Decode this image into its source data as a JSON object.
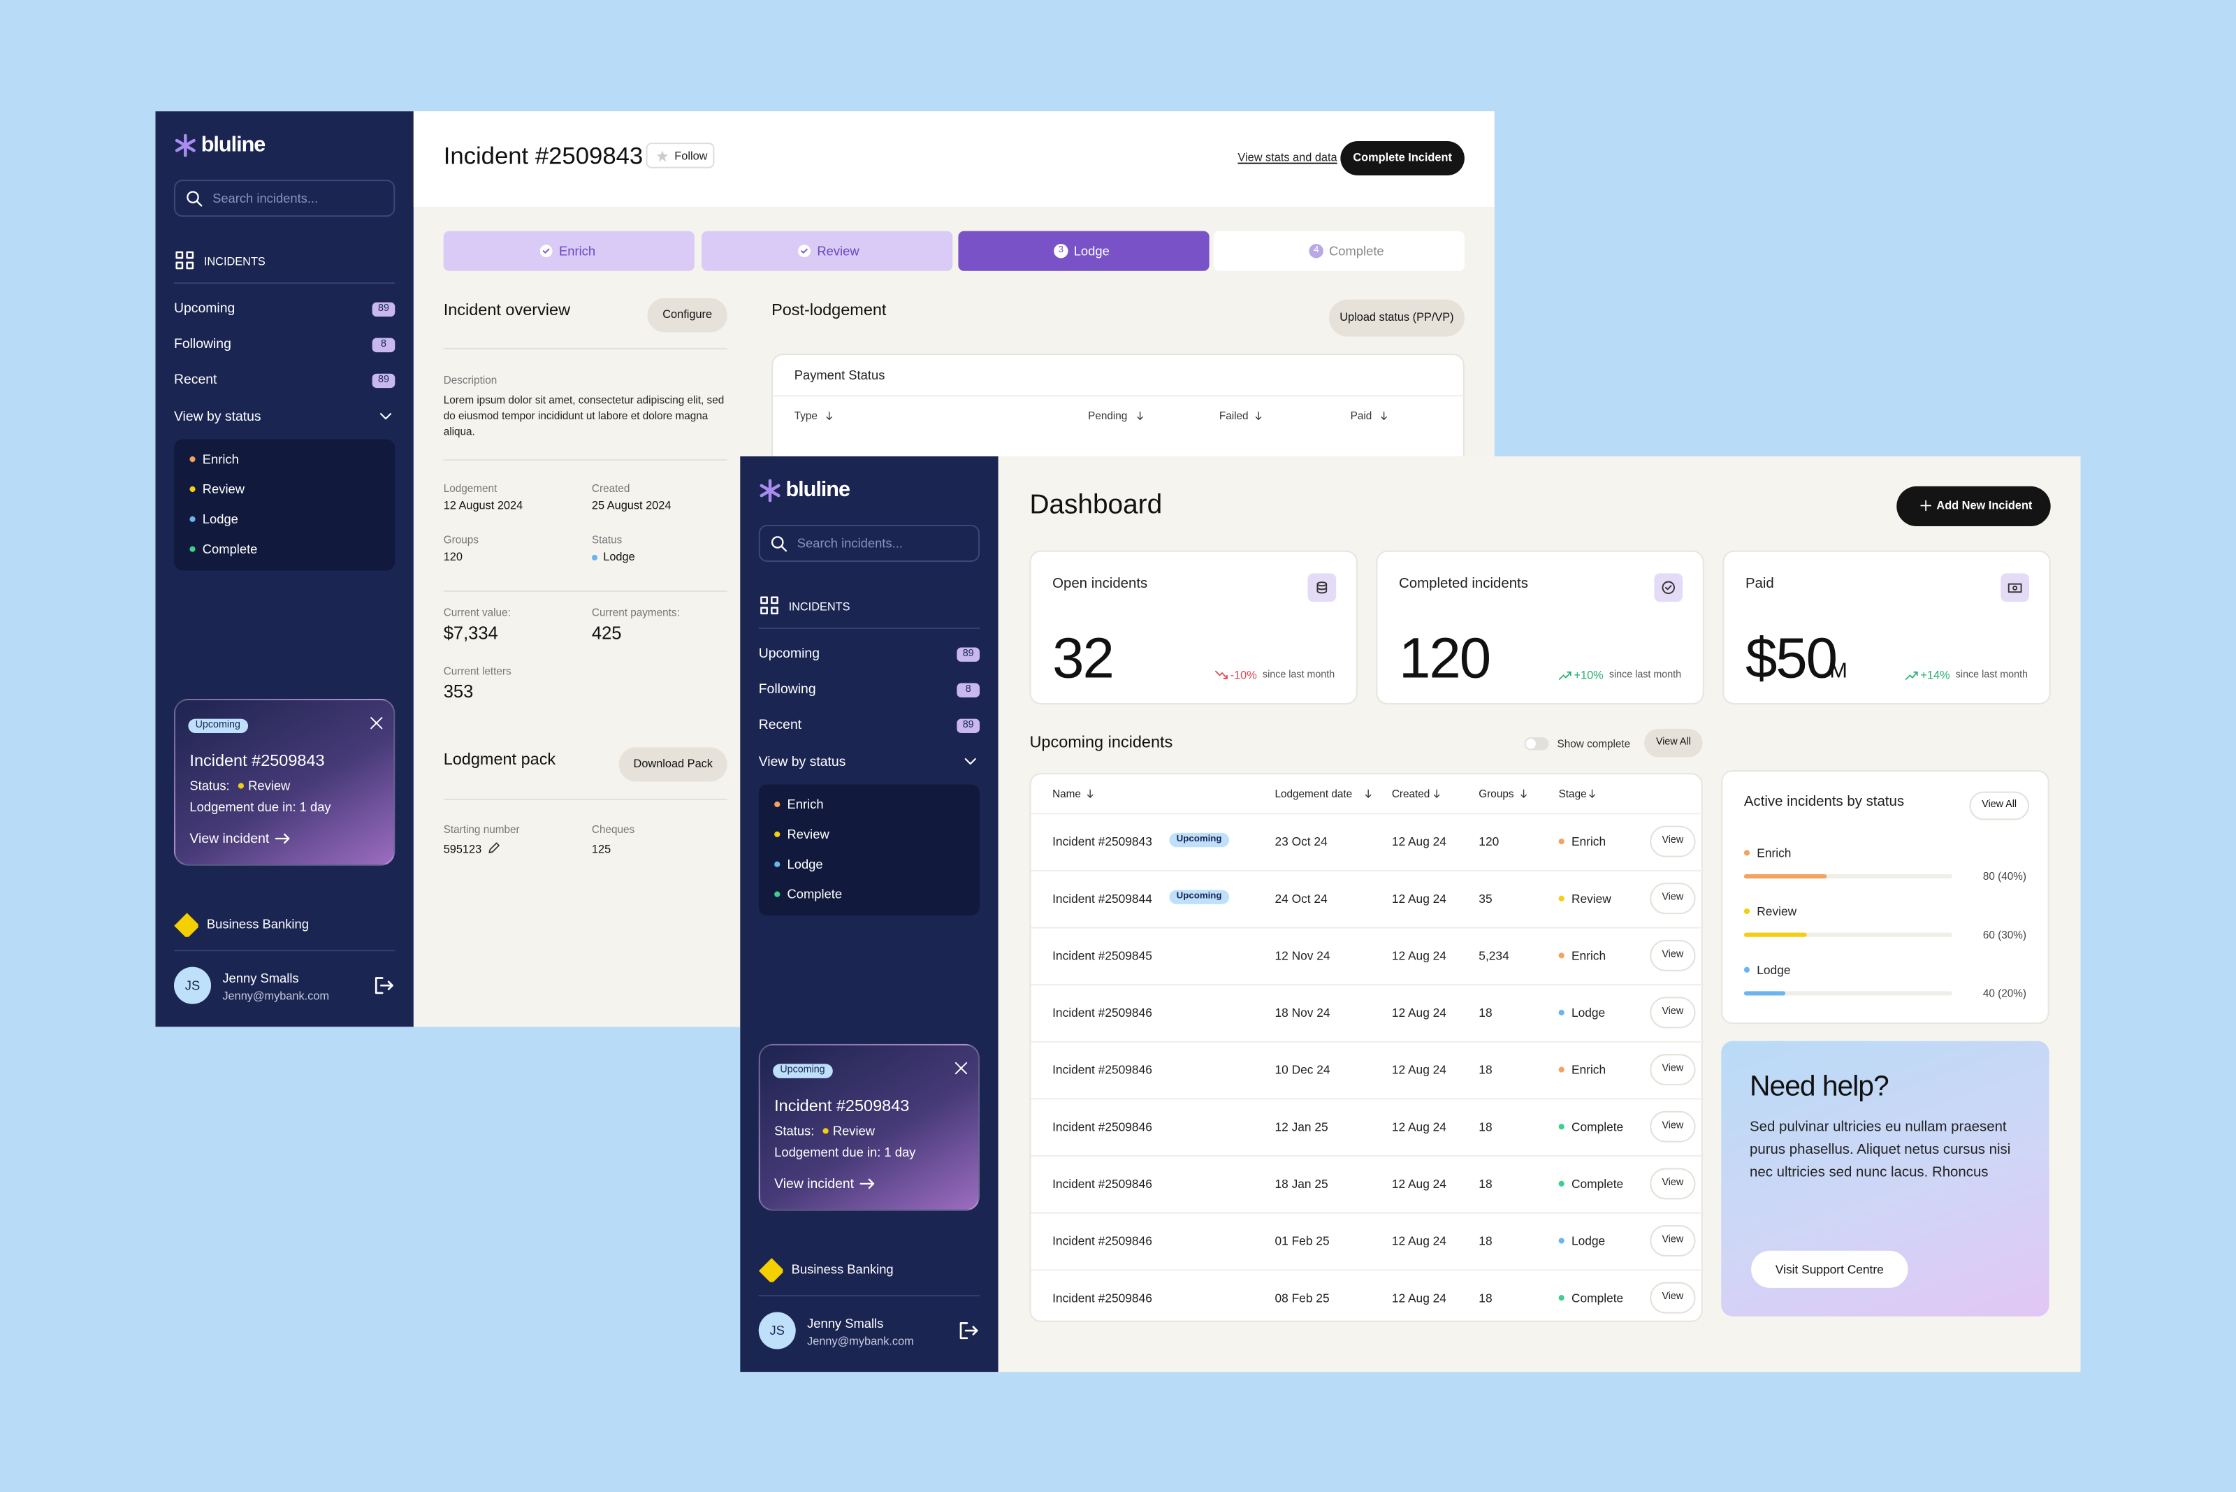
{
  "sidebar": {
    "brand": "bluline",
    "search": "Search incidents...",
    "nav_heading": "INCIDENTS",
    "nav": [
      {
        "label": "Upcoming",
        "count": 89
      },
      {
        "label": "Following",
        "count": 8
      },
      {
        "label": "Recent",
        "count": 89
      }
    ],
    "view_by_status": "View by status",
    "statuses": [
      {
        "label": "Enrich",
        "color": "#f2a35e"
      },
      {
        "label": "Review",
        "color": "#f3cf12"
      },
      {
        "label": "Lodge",
        "color": "#6cb4f0"
      },
      {
        "label": "Complete",
        "color": "#3ecf8e"
      }
    ],
    "promo": {
      "badge": "Upcoming",
      "title": "Incident #2509843",
      "status_label": "Status:",
      "status": "Review",
      "due": "Lodgement due in: 1 day",
      "link": "View incident"
    },
    "bank": "Business Banking",
    "user": {
      "initials": "JS",
      "name": "Jenny Smalls",
      "email": "Jenny@mybank.com"
    }
  },
  "incident": {
    "title": "Incident #2509843",
    "follow": "Follow",
    "view_stats": "View stats and data",
    "complete": "Complete Incident",
    "steps": [
      {
        "label": "Enrich",
        "state": "done"
      },
      {
        "label": "Review",
        "state": "done"
      },
      {
        "label": "Lodge",
        "state": "current",
        "number": 3
      },
      {
        "label": "Complete",
        "state": "todo",
        "number": 4
      }
    ],
    "overview": {
      "title": "Incident overview",
      "configure": "Configure",
      "description_label": "Description",
      "description": "Lorem ipsum dolor sit amet, consectetur adipiscing elit, sed do eiusmod tempor incididunt ut labore et dolore magna aliqua.",
      "fields": [
        {
          "label": "Lodgement",
          "value": "12 August 2024"
        },
        {
          "label": "Created",
          "value": "25 August 2024"
        },
        {
          "label": "Groups",
          "value": "120"
        },
        {
          "label": "Status",
          "value": "Lodge"
        },
        {
          "label": "Current value:",
          "value": "$7,334"
        },
        {
          "label": "Current payments:",
          "value": "425"
        },
        {
          "label": "Current letters",
          "value": "353"
        }
      ]
    },
    "pack": {
      "title": "Lodgment pack",
      "download": "Download Pack",
      "fields": [
        {
          "label": "Starting number",
          "value": "595123"
        },
        {
          "label": "Cheques",
          "value": "125"
        }
      ]
    },
    "post": {
      "title": "Post-lodgement",
      "upload": "Upload status (PP/VP)",
      "card_title": "Payment Status",
      "columns": [
        "Type",
        "Pending",
        "Failed",
        "Paid"
      ]
    }
  },
  "dashboard": {
    "title": "Dashboard",
    "add": "Add New Incident",
    "stats": [
      {
        "title": "Open incidents",
        "value": "32",
        "change": "-10%",
        "trend": "down",
        "note": "since last month"
      },
      {
        "title": "Completed incidents",
        "value": "120",
        "change": "+10%",
        "trend": "up",
        "note": "since last month"
      },
      {
        "title": "Paid",
        "value": "$50",
        "unit": "M",
        "change": "+14%",
        "trend": "up",
        "note": "since last month"
      }
    ],
    "upcoming": {
      "title": "Upcoming incidents",
      "toggle": "Show complete",
      "view_all": "View All",
      "columns": [
        "Name",
        "Lodgement date",
        "Created",
        "Groups",
        "Stage"
      ],
      "action": "View",
      "rows": [
        {
          "name": "Incident #2509843",
          "badge": "Upcoming",
          "date": "23 Oct 24",
          "created": "12 Aug 24",
          "groups": "120",
          "stage": "Enrich"
        },
        {
          "name": "Incident #2509844",
          "badge": "Upcoming",
          "date": "24 Oct 24",
          "created": "12 Aug 24",
          "groups": "35",
          "stage": "Review"
        },
        {
          "name": "Incident #2509845",
          "date": "12 Nov 24",
          "created": "12 Aug 24",
          "groups": "5,234",
          "stage": "Enrich"
        },
        {
          "name": "Incident #2509846",
          "date": "18 Nov 24",
          "created": "12 Aug 24",
          "groups": "18",
          "stage": "Lodge"
        },
        {
          "name": "Incident #2509846",
          "date": "10 Dec 24",
          "created": "12 Aug 24",
          "groups": "18",
          "stage": "Enrich"
        },
        {
          "name": "Incident #2509846",
          "date": "12 Jan 25",
          "created": "12 Aug 24",
          "groups": "18",
          "stage": "Complete"
        },
        {
          "name": "Incident #2509846",
          "date": "18 Jan 25",
          "created": "12 Aug 24",
          "groups": "18",
          "stage": "Complete"
        },
        {
          "name": "Incident #2509846",
          "date": "01 Feb 25",
          "created": "12 Aug 24",
          "groups": "18",
          "stage": "Lodge"
        },
        {
          "name": "Incident #2509846",
          "date": "08 Feb 25",
          "created": "12 Aug 24",
          "groups": "18",
          "stage": "Complete"
        }
      ]
    },
    "active": {
      "title": "Active incidents by status",
      "view_all": "View All",
      "items": [
        {
          "label": "Enrich",
          "share": 40,
          "text": "80 (40%)"
        },
        {
          "label": "Review",
          "share": 30,
          "text": "60 (30%)"
        },
        {
          "label": "Lodge",
          "share": 20,
          "text": "40 (20%)"
        }
      ]
    },
    "help": {
      "title": "Need help?",
      "text": "Sed pulvinar ultricies eu nullam praesent purus phasellus. Aliquet netus cursus nisi nec ultricies sed nunc lacus. Rhoncus",
      "button": "Visit Support Centre"
    }
  }
}
